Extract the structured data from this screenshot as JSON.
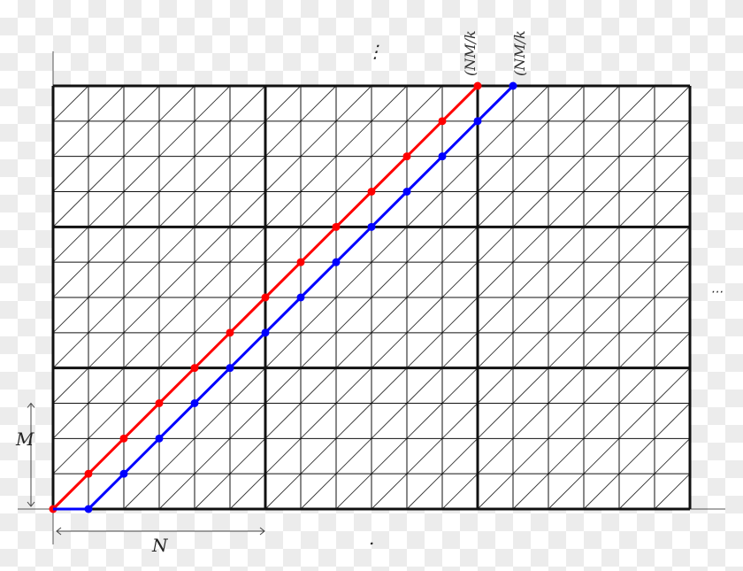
{
  "diagram": {
    "grid": {
      "columns": 18,
      "rows": 12,
      "block_columns": 3,
      "block_rows": 3
    },
    "labels": {
      "top_dots": "⋮",
      "right_dots": "⋯",
      "bottom_dot": ".",
      "height_label": "M",
      "width_label": "N",
      "red_end_label": "(NM/k",
      "blue_end_label": "(NM/k"
    },
    "paths": [
      {
        "color": "#ff0000",
        "start_col": 0,
        "steps": 12
      },
      {
        "color": "#0000ff",
        "start_col": 1,
        "steps": 12
      }
    ]
  }
}
